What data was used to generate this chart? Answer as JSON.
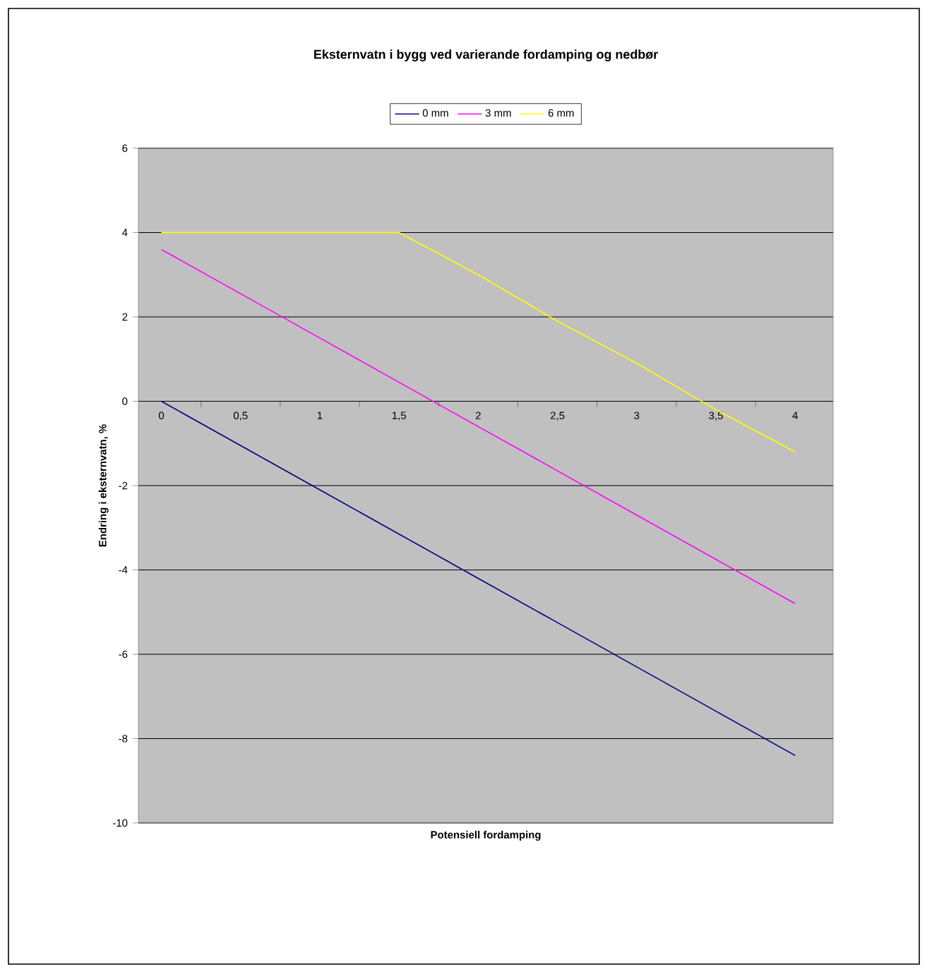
{
  "chart_data": {
    "type": "line",
    "title": "Eksternvatn i bygg ved varierande fordamping og nedbør",
    "xlabel": "Potensiell fordamping",
    "ylabel": "Endring i eksternvatn, %",
    "categories": [
      "0",
      "0,5",
      "1",
      "1,5",
      "2",
      "2,5",
      "3",
      "3,5",
      "4"
    ],
    "series": [
      {
        "name": "0 mm",
        "color": "#000080",
        "values": [
          0,
          -1.05,
          -2.1,
          -3.15,
          -4.2,
          -5.25,
          -6.3,
          -7.35,
          -8.4
        ]
      },
      {
        "name": "3 mm",
        "color": "#ff00ff",
        "values": [
          3.6,
          2.55,
          1.5,
          0.45,
          -0.6,
          -1.65,
          -2.7,
          -3.75,
          -4.8
        ]
      },
      {
        "name": "6 mm",
        "color": "#ffff00",
        "values": [
          4,
          4,
          4,
          4,
          3.0,
          1.9,
          0.9,
          -0.2,
          -1.2
        ]
      }
    ],
    "ylim": [
      -10,
      6
    ],
    "yticks": [
      -10,
      -8,
      -6,
      -4,
      -2,
      0,
      2,
      4,
      6
    ],
    "grid": "y",
    "legend": "top"
  }
}
